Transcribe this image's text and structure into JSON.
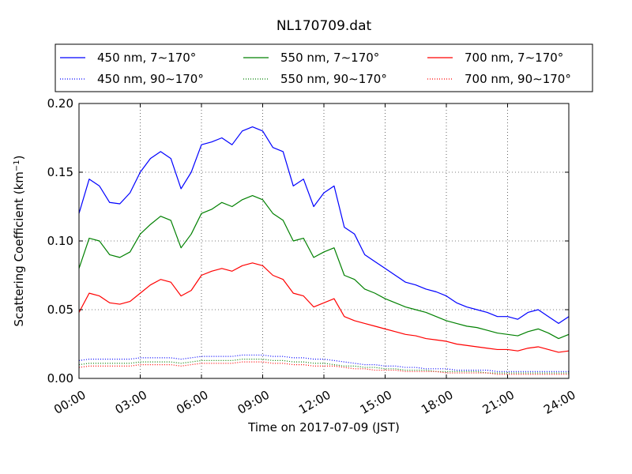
{
  "chart_data": {
    "type": "line",
    "title": "NL170709.dat",
    "xlabel": "Time on 2017-07-09 (JST)",
    "ylabel_main": "Scattering Coefficient (km",
    "ylabel_sup": "−1",
    "ylabel_close": ")",
    "xlim": [
      0,
      24
    ],
    "ylim": [
      0,
      0.2
    ],
    "grid": true,
    "legend_placement": "top (above plot)",
    "x_ticks": [
      0,
      3,
      6,
      9,
      12,
      15,
      18,
      21,
      24
    ],
    "x_tick_labels": [
      "00:00",
      "03:00",
      "06:00",
      "09:00",
      "12:00",
      "15:00",
      "18:00",
      "21:00",
      "24:00"
    ],
    "y_ticks": [
      0,
      0.05,
      0.1,
      0.15,
      0.2
    ],
    "y_tick_labels": [
      "0.00",
      "0.05",
      "0.10",
      "0.15",
      "0.20"
    ],
    "x_hours": [
      0,
      0.5,
      1,
      1.5,
      2,
      2.5,
      3,
      3.5,
      4,
      4.5,
      5,
      5.5,
      6,
      6.5,
      7,
      7.5,
      8,
      8.5,
      9,
      9.5,
      10,
      10.5,
      11,
      11.5,
      12,
      12.5,
      13,
      13.5,
      14,
      14.5,
      15,
      15.5,
      16,
      16.5,
      17,
      17.5,
      18,
      18.5,
      19,
      19.5,
      20,
      20.5,
      21,
      21.5,
      22,
      22.5,
      23,
      23.5,
      24
    ],
    "series": [
      {
        "name": "450 nm, 7∼170°",
        "color": "#0000ff",
        "style": "solid",
        "values": [
          0.12,
          0.145,
          0.14,
          0.128,
          0.127,
          0.135,
          0.15,
          0.16,
          0.165,
          0.16,
          0.138,
          0.15,
          0.17,
          0.172,
          0.175,
          0.17,
          0.18,
          0.183,
          0.18,
          0.168,
          0.165,
          0.14,
          0.145,
          0.125,
          0.135,
          0.14,
          0.11,
          0.105,
          0.09,
          0.085,
          0.08,
          0.075,
          0.07,
          0.068,
          0.065,
          0.063,
          0.06,
          0.055,
          0.052,
          0.05,
          0.048,
          0.045,
          0.045,
          0.043,
          0.048,
          0.05,
          0.045,
          0.04,
          0.045
        ]
      },
      {
        "name": "450 nm, 90∼170°",
        "color": "#0000ff",
        "style": "dotted",
        "values": [
          0.013,
          0.014,
          0.014,
          0.014,
          0.014,
          0.014,
          0.015,
          0.015,
          0.015,
          0.015,
          0.014,
          0.015,
          0.016,
          0.016,
          0.016,
          0.016,
          0.017,
          0.017,
          0.017,
          0.016,
          0.016,
          0.015,
          0.015,
          0.014,
          0.014,
          0.013,
          0.012,
          0.011,
          0.01,
          0.01,
          0.009,
          0.009,
          0.008,
          0.008,
          0.007,
          0.007,
          0.007,
          0.006,
          0.006,
          0.006,
          0.006,
          0.005,
          0.005,
          0.005,
          0.005,
          0.005,
          0.005,
          0.005,
          0.005
        ]
      },
      {
        "name": "550 nm, 7∼170°",
        "color": "#008000",
        "style": "solid",
        "values": [
          0.08,
          0.102,
          0.1,
          0.09,
          0.088,
          0.092,
          0.105,
          0.112,
          0.118,
          0.115,
          0.095,
          0.105,
          0.12,
          0.123,
          0.128,
          0.125,
          0.13,
          0.133,
          0.13,
          0.12,
          0.115,
          0.1,
          0.102,
          0.088,
          0.092,
          0.095,
          0.075,
          0.072,
          0.065,
          0.062,
          0.058,
          0.055,
          0.052,
          0.05,
          0.048,
          0.045,
          0.042,
          0.04,
          0.038,
          0.037,
          0.035,
          0.033,
          0.032,
          0.031,
          0.034,
          0.036,
          0.033,
          0.029,
          0.032
        ]
      },
      {
        "name": "550 nm, 90∼170°",
        "color": "#008000",
        "style": "dotted",
        "values": [
          0.01,
          0.011,
          0.011,
          0.011,
          0.011,
          0.011,
          0.012,
          0.012,
          0.012,
          0.012,
          0.011,
          0.012,
          0.013,
          0.013,
          0.013,
          0.013,
          0.014,
          0.014,
          0.014,
          0.013,
          0.013,
          0.012,
          0.012,
          0.011,
          0.011,
          0.01,
          0.009,
          0.009,
          0.008,
          0.008,
          0.007,
          0.007,
          0.006,
          0.006,
          0.006,
          0.005,
          0.005,
          0.005,
          0.005,
          0.005,
          0.004,
          0.004,
          0.004,
          0.004,
          0.004,
          0.004,
          0.004,
          0.004,
          0.004
        ]
      },
      {
        "name": "700 nm, 7∼170°",
        "color": "#ff0000",
        "style": "solid",
        "values": [
          0.048,
          0.062,
          0.06,
          0.055,
          0.054,
          0.056,
          0.062,
          0.068,
          0.072,
          0.07,
          0.06,
          0.064,
          0.075,
          0.078,
          0.08,
          0.078,
          0.082,
          0.084,
          0.082,
          0.075,
          0.072,
          0.062,
          0.06,
          0.052,
          0.055,
          0.058,
          0.045,
          0.042,
          0.04,
          0.038,
          0.036,
          0.034,
          0.032,
          0.031,
          0.029,
          0.028,
          0.027,
          0.025,
          0.024,
          0.023,
          0.022,
          0.021,
          0.021,
          0.02,
          0.022,
          0.023,
          0.021,
          0.019,
          0.02
        ]
      },
      {
        "name": "700 nm, 90∼170°",
        "color": "#ff0000",
        "style": "dotted",
        "values": [
          0.008,
          0.009,
          0.009,
          0.009,
          0.009,
          0.009,
          0.01,
          0.01,
          0.01,
          0.01,
          0.009,
          0.01,
          0.011,
          0.011,
          0.011,
          0.011,
          0.012,
          0.012,
          0.012,
          0.011,
          0.011,
          0.01,
          0.01,
          0.009,
          0.009,
          0.009,
          0.008,
          0.007,
          0.007,
          0.006,
          0.006,
          0.006,
          0.005,
          0.005,
          0.005,
          0.005,
          0.004,
          0.004,
          0.004,
          0.004,
          0.004,
          0.003,
          0.003,
          0.003,
          0.003,
          0.003,
          0.003,
          0.003,
          0.003
        ]
      }
    ]
  }
}
